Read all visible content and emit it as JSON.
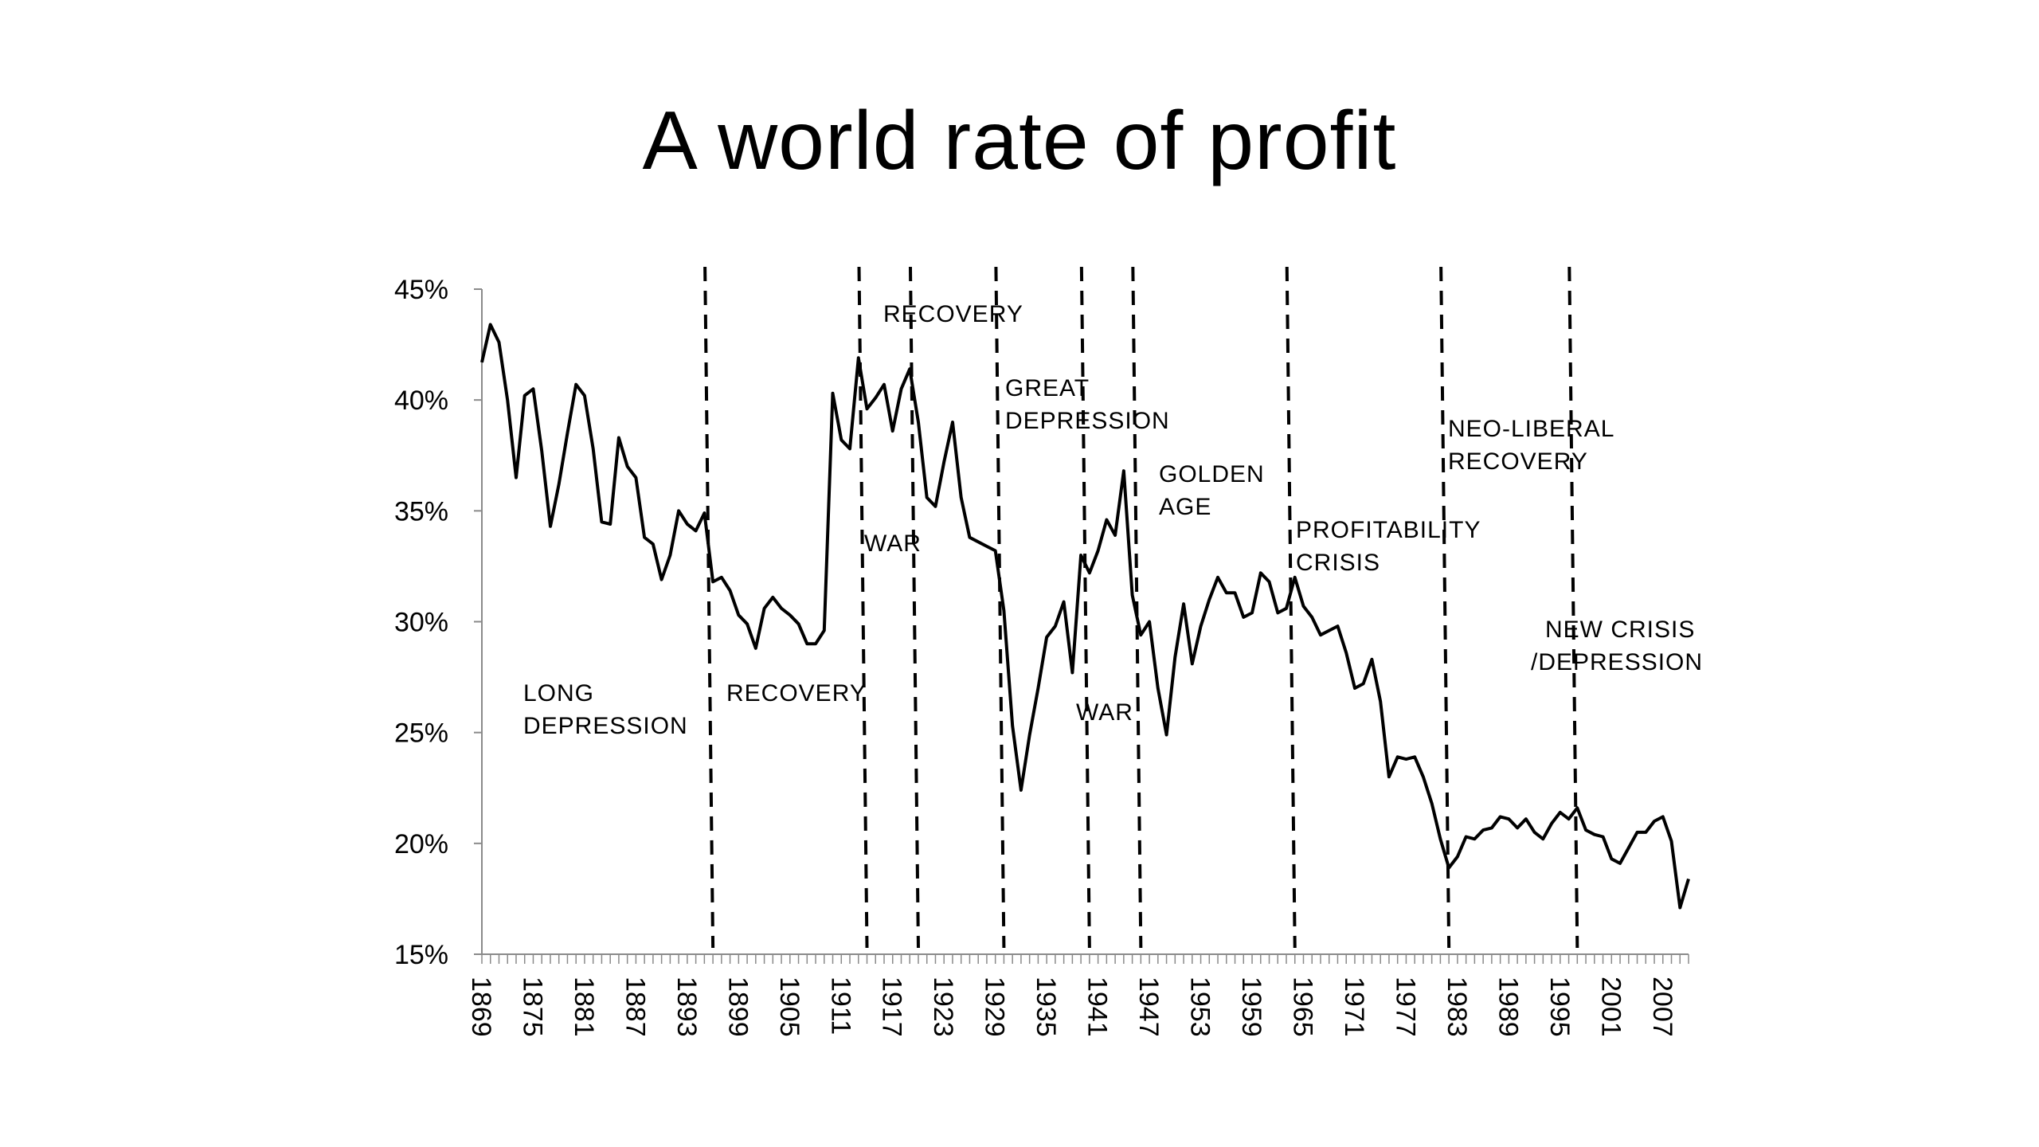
{
  "chart_data": {
    "type": "line",
    "title": "A world rate of profit",
    "xlabel": "",
    "ylabel": "",
    "xlim": [
      1869,
      2010
    ],
    "ylim": [
      0.15,
      0.45
    ],
    "yticks": [
      {
        "value": 0.15,
        "label": "15%"
      },
      {
        "value": 0.2,
        "label": "20%"
      },
      {
        "value": 0.25,
        "label": "25%"
      },
      {
        "value": 0.3,
        "label": "30%"
      },
      {
        "value": 0.35,
        "label": "35%"
      },
      {
        "value": 0.4,
        "label": "40%"
      },
      {
        "value": 0.45,
        "label": "45%"
      }
    ],
    "xticks": [
      1869,
      1875,
      1881,
      1887,
      1893,
      1899,
      1905,
      1911,
      1917,
      1923,
      1929,
      1935,
      1941,
      1947,
      1953,
      1959,
      1965,
      1971,
      1977,
      1983,
      1989,
      1995,
      2001,
      2007
    ],
    "grid": false,
    "series": [
      {
        "color": "#000000",
        "x": [
          1869,
          1870,
          1871,
          1872,
          1873,
          1874,
          1875,
          1876,
          1877,
          1878,
          1879,
          1880,
          1881,
          1882,
          1883,
          1884,
          1885,
          1886,
          1887,
          1888,
          1889,
          1890,
          1891,
          1892,
          1893,
          1894,
          1895,
          1896,
          1897,
          1898,
          1899,
          1900,
          1901,
          1902,
          1903,
          1904,
          1905,
          1906,
          1907,
          1908,
          1909,
          1910,
          1911,
          1912,
          1913,
          1914,
          1915,
          1916,
          1917,
          1918,
          1919,
          1920,
          1921,
          1922,
          1923,
          1924,
          1925,
          1926,
          1927,
          1928,
          1929,
          1930,
          1931,
          1932,
          1933,
          1934,
          1935,
          1936,
          1937,
          1938,
          1939,
          1940,
          1941,
          1942,
          1943,
          1944,
          1945,
          1946,
          1947,
          1948,
          1949,
          1950,
          1951,
          1952,
          1953,
          1954,
          1955,
          1956,
          1957,
          1958,
          1959,
          1960,
          1961,
          1962,
          1963,
          1964,
          1965,
          1966,
          1967,
          1968,
          1969,
          1970,
          1971,
          1972,
          1973,
          1974,
          1975,
          1976,
          1977,
          1978,
          1979,
          1980,
          1981,
          1982,
          1983,
          1984,
          1985,
          1986,
          1987,
          1988,
          1989,
          1990,
          1991,
          1992,
          1993,
          1994,
          1995,
          1996,
          1997,
          1998,
          1999,
          2000,
          2001,
          2002,
          2003,
          2004,
          2005,
          2006,
          2007,
          2008,
          2009,
          2010
        ],
        "values": [
          0.417,
          0.434,
          0.426,
          0.4,
          0.365,
          0.402,
          0.405,
          0.377,
          0.343,
          0.362,
          0.385,
          0.407,
          0.402,
          0.378,
          0.345,
          0.344,
          0.383,
          0.37,
          0.365,
          0.338,
          0.335,
          0.319,
          0.33,
          0.35,
          0.344,
          0.341,
          0.349,
          0.318,
          0.32,
          0.314,
          0.303,
          0.299,
          0.288,
          0.306,
          0.311,
          0.306,
          0.303,
          0.299,
          0.29,
          0.29,
          0.296,
          0.403,
          0.382,
          0.378,
          0.419,
          0.396,
          0.401,
          0.407,
          0.386,
          0.405,
          0.414,
          0.39,
          0.356,
          0.352,
          0.372,
          0.39,
          0.356,
          0.338,
          0.336,
          0.334,
          0.332,
          0.305,
          0.253,
          0.224,
          0.249,
          0.27,
          0.293,
          0.298,
          0.309,
          0.277,
          0.33,
          0.322,
          0.332,
          0.346,
          0.339,
          0.368,
          0.312,
          0.294,
          0.3,
          0.27,
          0.249,
          0.284,
          0.308,
          0.281,
          0.298,
          0.31,
          0.32,
          0.313,
          0.313,
          0.302,
          0.304,
          0.322,
          0.318,
          0.304,
          0.306,
          0.32,
          0.307,
          0.302,
          0.294,
          0.296,
          0.298,
          0.286,
          0.27,
          0.272,
          0.283,
          0.264,
          0.23,
          0.239,
          0.238,
          0.239,
          0.23,
          0.218,
          0.202,
          0.189,
          0.194,
          0.203,
          0.202,
          0.206,
          0.207,
          0.212,
          0.211,
          0.207,
          0.211,
          0.205,
          0.202,
          0.209,
          0.214,
          0.211,
          0.216,
          0.206,
          0.204,
          0.203,
          0.193,
          0.191,
          0.198,
          0.205,
          0.205,
          0.21,
          0.212,
          0.201,
          0.171,
          0.184
        ]
      }
    ],
    "dividers": [
      1896,
      1914,
      1920,
      1930,
      1940,
      1946,
      1964,
      1982,
      1997
    ],
    "annotations": [
      {
        "lines": [
          "LONG",
          "DEPRESSION"
        ]
      },
      {
        "lines": [
          "RECOVERY"
        ]
      },
      {
        "lines": [
          "WAR"
        ]
      },
      {
        "lines": [
          "RECOVERY"
        ]
      },
      {
        "lines": [
          "GREAT",
          "DEPRESSION"
        ]
      },
      {
        "lines": [
          "WAR"
        ]
      },
      {
        "lines": [
          "GOLDEN",
          "AGE"
        ]
      },
      {
        "lines": [
          "PROFITABILITY",
          "CRISIS"
        ]
      },
      {
        "lines": [
          "NEO-LIBERAL",
          "RECOVERY"
        ]
      },
      {
        "lines": [
          "NEW CRISIS",
          "/DEPRESSION"
        ]
      }
    ]
  }
}
